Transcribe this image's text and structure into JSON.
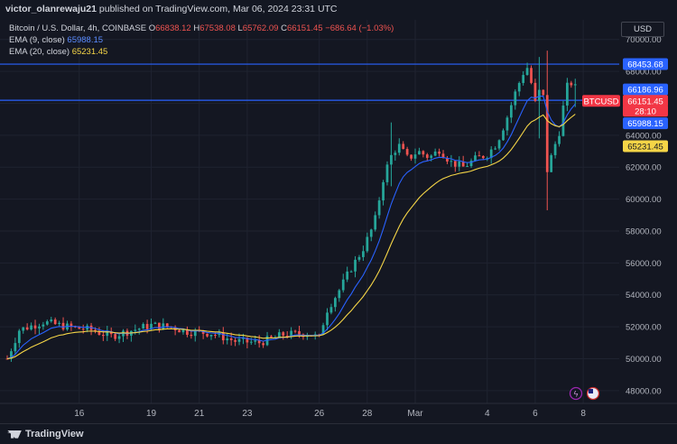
{
  "header": {
    "author": "victor_olanrewaju21",
    "published_text": "published on TradingView.com, Mar 06, 2024 23:31 UTC"
  },
  "legend": {
    "symbol": "Bitcoin / U.S. Dollar, 4h, COINBASE",
    "open_label": "O",
    "open": "66838.12",
    "high_label": "H",
    "high": "67538.08",
    "low_label": "L",
    "low": "65762.09",
    "close_label": "C",
    "close": "66151.45",
    "change": "−686.64 (−1.03%)",
    "ema9_label": "EMA (9, close)",
    "ema9_value": "65988.15",
    "ema20_label": "EMA (20, close)",
    "ema20_value": "65231.45"
  },
  "currency": "USD",
  "footer": {
    "brand": "TradingView"
  },
  "chart_data": {
    "type": "candlestick",
    "title": "Bitcoin / U.S. Dollar, 4h, COINBASE",
    "ylim": [
      47200,
      71000
    ],
    "y_ticks": [
      "70000.00",
      "68000.00",
      "66000.00",
      "64000.00",
      "62000.00",
      "60000.00",
      "58000.00",
      "56000.00",
      "54000.00",
      "52000.00",
      "50000.00",
      "48000.00"
    ],
    "y_tick_values": [
      70000,
      68000,
      66000,
      64000,
      62000,
      60000,
      58000,
      56000,
      54000,
      52000,
      50000,
      48000
    ],
    "x_tick_labels": [
      "16",
      "19",
      "21",
      "23",
      "26",
      "28",
      "Mar",
      "4",
      "6",
      "8"
    ],
    "x_tick_days": [
      3,
      6,
      8,
      10,
      13,
      15,
      17,
      20,
      22,
      24
    ],
    "x_range_days": [
      0,
      25.5
    ],
    "grid": true,
    "horizontal_levels": [
      {
        "value": 68453.68,
        "label": "68453.68",
        "color": "#2962ff"
      },
      {
        "value": 66186.96,
        "label": "66186.96",
        "color": "#2962ff"
      }
    ],
    "price_tags": [
      {
        "label": "BTCUSD",
        "value": 66151.45,
        "color": "#f23645"
      },
      {
        "label": "66151.45",
        "value": 66151.45,
        "color": "#f23645"
      },
      {
        "label": "28:10",
        "value": 66151.45,
        "color": "#f23645"
      },
      {
        "label": "65988.15",
        "value": 65988.15,
        "color": "#2962ff"
      },
      {
        "label": "65231.45",
        "value": 65231.45,
        "color": "#f5d547"
      }
    ],
    "series": [
      {
        "name": "EMA (9, close)",
        "color": "#2962ff"
      },
      {
        "name": "EMA (20, close)",
        "color": "#f5d547"
      }
    ],
    "close_anchors": [
      [
        0,
        50000
      ],
      [
        0.5,
        51800
      ],
      [
        1.5,
        52300
      ],
      [
        2.5,
        52000
      ],
      [
        3.5,
        51800
      ],
      [
        4.3,
        51400
      ],
      [
        5,
        51700
      ],
      [
        6,
        52100
      ],
      [
        6.8,
        52000
      ],
      [
        7.5,
        51700
      ],
      [
        8.5,
        51600
      ],
      [
        9.5,
        51100
      ],
      [
        10.5,
        51000
      ],
      [
        11.5,
        51500
      ],
      [
        12.5,
        51600
      ],
      [
        13,
        51300
      ],
      [
        13.3,
        53000
      ],
      [
        13.8,
        54200
      ],
      [
        14.3,
        55600
      ],
      [
        14.8,
        56800
      ],
      [
        15.3,
        58500
      ],
      [
        15.7,
        61500
      ],
      [
        16.0,
        62700
      ],
      [
        16.3,
        63400
      ],
      [
        16.7,
        62500
      ],
      [
        17.1,
        63000
      ],
      [
        17.6,
        62600
      ],
      [
        18.0,
        63100
      ],
      [
        18.5,
        62300
      ],
      [
        19.0,
        62000
      ],
      [
        19.5,
        62500
      ],
      [
        20.0,
        62800
      ],
      [
        20.4,
        63500
      ],
      [
        20.8,
        65000
      ],
      [
        21.2,
        66800
      ],
      [
        21.5,
        67900
      ],
      [
        21.7,
        68300
      ],
      [
        22.0,
        66000
      ],
      [
        22.3,
        67300
      ],
      [
        22.5,
        61800
      ],
      [
        22.8,
        63300
      ],
      [
        23.0,
        64200
      ],
      [
        23.3,
        67000
      ],
      [
        23.6,
        67400
      ],
      [
        23.8,
        66151
      ]
    ],
    "spikes": [
      {
        "day": 16.0,
        "high": 64800,
        "low": 60800
      },
      {
        "day": 22.5,
        "high": 69300,
        "low": 59300
      },
      {
        "day": 22.2,
        "high": 68900,
        "low": 63800
      },
      {
        "day": 23.6,
        "high": 67538,
        "low": 65762
      }
    ]
  }
}
